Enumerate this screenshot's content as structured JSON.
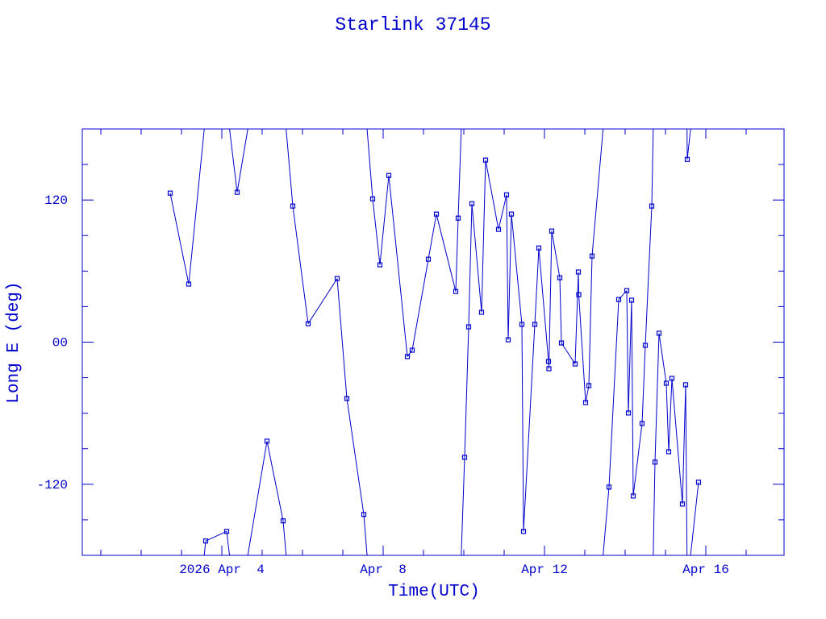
{
  "chart_data": {
    "type": "line",
    "title": "Starlink 37145",
    "xlabel": "Time(UTC)",
    "ylabel": "Long E (deg)",
    "x_unit": "day of April 2026 (UTC, fractional)",
    "xlim": [
      0.54,
      17.94
    ],
    "ylim": [
      -180,
      180
    ],
    "x_minor_ticks": [
      1,
      2,
      3,
      4,
      5,
      6,
      7,
      8,
      9,
      10,
      11,
      12,
      13,
      14,
      15,
      16,
      17
    ],
    "x_major_ticks": [
      {
        "value": 4,
        "label": "2026 Apr  4"
      },
      {
        "value": 8,
        "label": "Apr  8"
      },
      {
        "value": 12,
        "label": "Apr 12"
      },
      {
        "value": 16,
        "label": "Apr 16"
      }
    ],
    "y_minor_ticks": [
      -150,
      -90,
      -60,
      -30,
      30,
      60,
      90,
      150
    ],
    "y_major_ticks": [
      {
        "value": 120,
        "label": "120"
      },
      {
        "value": 0,
        "label": "00"
      },
      {
        "value": -120,
        "label": "-120"
      }
    ],
    "grid": false,
    "wraps_longitude": true,
    "color": "#0000cc",
    "series": [
      {
        "name": "Starlink 37145",
        "x": [
          2.72,
          3.18,
          3.6,
          4.12,
          4.38,
          5.12,
          5.52,
          5.76,
          6.14,
          6.86,
          7.1,
          7.52,
          7.74,
          7.92,
          8.14,
          8.6,
          8.72,
          9.12,
          9.32,
          9.8,
          9.86,
          10.02,
          10.12,
          10.2,
          10.44,
          10.54,
          10.86,
          11.06,
          11.1,
          11.18,
          11.44,
          11.48,
          11.76,
          11.86,
          12.1,
          12.11,
          12.18,
          12.38,
          12.42,
          12.76,
          12.84,
          12.85,
          13.02,
          13.1,
          13.18,
          13.6,
          13.84,
          14.04,
          14.08,
          14.16,
          14.2,
          14.42,
          14.5,
          14.66,
          14.74,
          14.84,
          15.02,
          15.08,
          15.16,
          15.42,
          15.5,
          15.54,
          15.82
        ],
        "y": [
          125.8,
          49.0,
          -167.9,
          -159.8,
          126.5,
          -83.6,
          -150.9,
          114.9,
          15.6,
          53.7,
          -47.6,
          -145.5,
          121.0,
          65.3,
          140.7,
          -12.2,
          -6.8,
          70.0,
          108.1,
          42.8,
          104.7,
          -97.2,
          12.9,
          116.9,
          25.2,
          153.7,
          95.2,
          124.4,
          2.0,
          108.1,
          15.0,
          -159.8,
          15.0,
          79.5,
          -16.3,
          -22.4,
          93.8,
          54.4,
          -0.7,
          -18.4,
          59.2,
          40.1,
          -51.0,
          -36.7,
          72.7,
          -122.4,
          36.0,
          43.5,
          -59.8,
          35.4,
          -129.9,
          -68.7,
          -2.7,
          114.9,
          -101.3,
          7.5,
          -34.7,
          -92.5,
          -30.6,
          -136.7,
          -36.0,
          154.3,
          -118.3
        ]
      }
    ]
  }
}
